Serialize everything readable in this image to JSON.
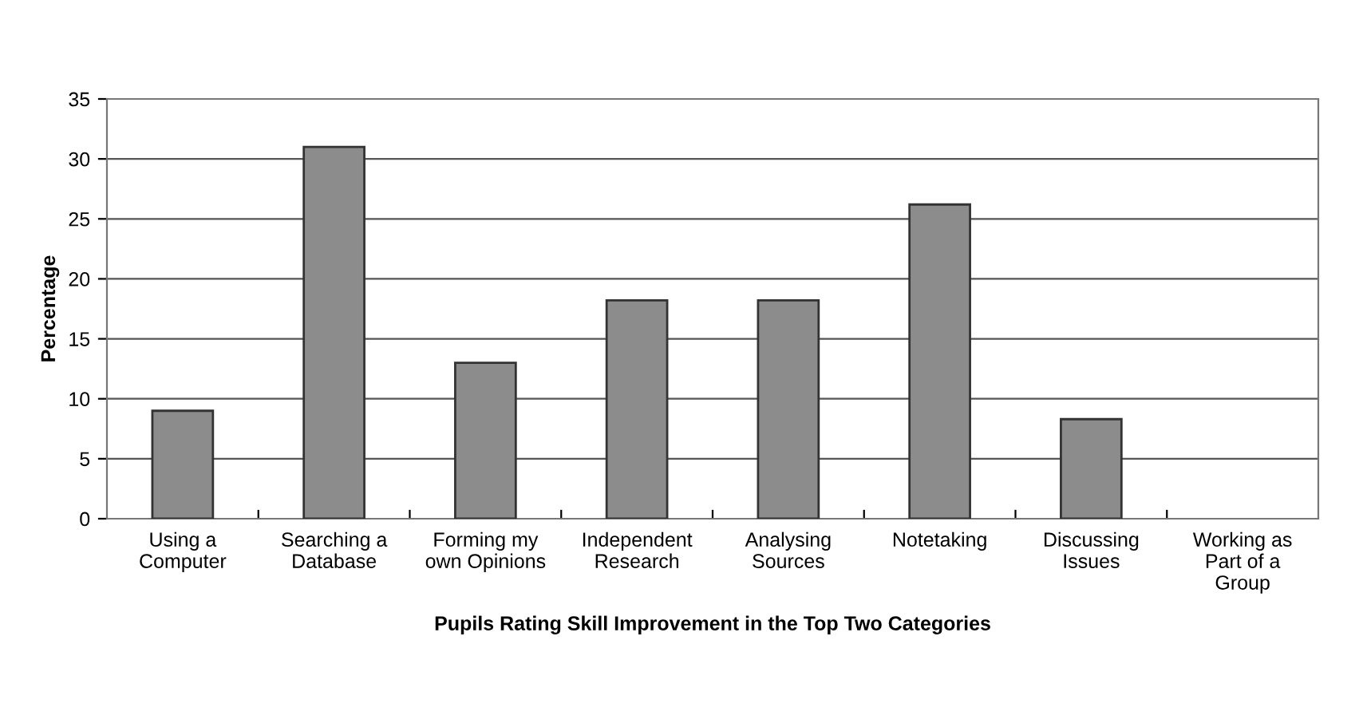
{
  "chart_data": {
    "type": "bar",
    "xlabel": "Pupils Rating Skill Improvement in the Top Two Categories",
    "ylabel": "Percentage",
    "categories": [
      "Using a\nComputer",
      "Searching a\nDatabase",
      "Forming my\nown Opinions",
      "Independent\nResearch",
      "Analysing\nSources",
      "Notetaking",
      "Discussing\nIssues",
      "Working as\nPart of a\nGroup"
    ],
    "values": [
      9,
      31,
      13,
      18.2,
      18.2,
      26.2,
      8.3,
      0
    ],
    "color": "#8c8c8c",
    "ylim": [
      0,
      35
    ],
    "yticks": [
      0,
      5,
      10,
      15,
      20,
      25,
      30,
      35
    ],
    "grid": "y",
    "legend": false
  }
}
